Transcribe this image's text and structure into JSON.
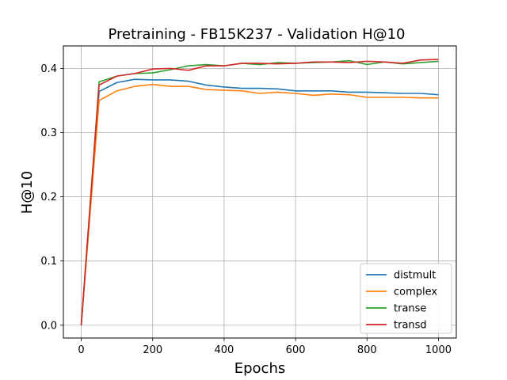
{
  "chart_data": {
    "type": "line",
    "title": "Pretraining - FB15K237 - Validation H@10",
    "xlabel": "Epochs",
    "ylabel": "H@10",
    "xlim": [
      -50,
      1050
    ],
    "ylim": [
      -0.02,
      0.435
    ],
    "xticks": [
      0,
      200,
      400,
      600,
      800,
      1000
    ],
    "yticks": [
      0.0,
      0.1,
      0.2,
      0.3,
      0.4
    ],
    "ytick_labels": [
      "0.0",
      "0.1",
      "0.2",
      "0.3",
      "0.4"
    ],
    "grid": true,
    "legend_position": "lower-right",
    "x": [
      0,
      50,
      100,
      150,
      200,
      250,
      300,
      350,
      400,
      450,
      500,
      550,
      600,
      650,
      700,
      750,
      800,
      850,
      900,
      950,
      1000
    ],
    "series": [
      {
        "name": "distmult",
        "color": "#1f77b4",
        "values": [
          0.0,
          0.364,
          0.378,
          0.383,
          0.382,
          0.382,
          0.38,
          0.374,
          0.371,
          0.369,
          0.369,
          0.368,
          0.365,
          0.365,
          0.365,
          0.363,
          0.363,
          0.362,
          0.361,
          0.361,
          0.359
        ]
      },
      {
        "name": "complex",
        "color": "#ff7f0e",
        "values": [
          0.0,
          0.35,
          0.365,
          0.372,
          0.375,
          0.372,
          0.372,
          0.367,
          0.366,
          0.365,
          0.361,
          0.363,
          0.361,
          0.358,
          0.36,
          0.359,
          0.355,
          0.355,
          0.355,
          0.354,
          0.354
        ]
      },
      {
        "name": "transe",
        "color": "#2ca02c",
        "values": [
          0.0,
          0.379,
          0.388,
          0.392,
          0.393,
          0.398,
          0.404,
          0.406,
          0.404,
          0.408,
          0.406,
          0.409,
          0.408,
          0.409,
          0.41,
          0.412,
          0.406,
          0.41,
          0.407,
          0.409,
          0.411
        ]
      },
      {
        "name": "transd",
        "color": "#d62728",
        "values": [
          0.0,
          0.374,
          0.388,
          0.392,
          0.399,
          0.4,
          0.397,
          0.404,
          0.404,
          0.408,
          0.408,
          0.407,
          0.408,
          0.41,
          0.41,
          0.409,
          0.411,
          0.41,
          0.408,
          0.413,
          0.414
        ]
      }
    ]
  }
}
